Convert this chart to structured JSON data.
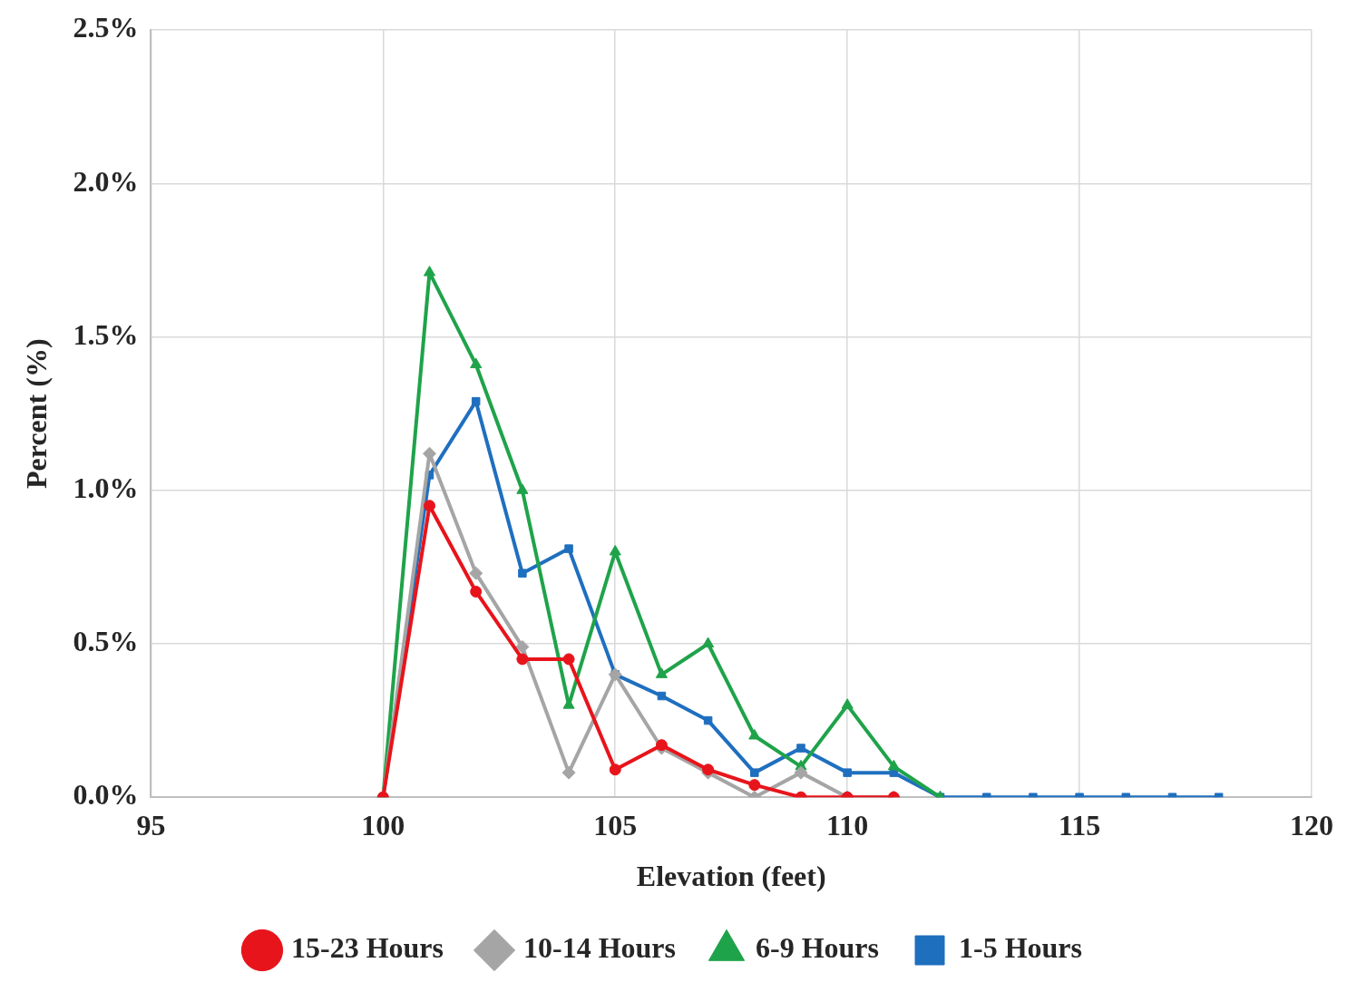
{
  "chart_data": {
    "type": "line",
    "xlabel": "Elevation (feet)",
    "ylabel": "Percent (%)",
    "xlim": [
      95,
      120
    ],
    "xticks": [
      95,
      100,
      105,
      110,
      115,
      120
    ],
    "ylim": [
      0,
      2.5
    ],
    "yticks": [
      {
        "value": 0,
        "label": "0.0%"
      },
      {
        "value": 0.5,
        "label": "0.5%"
      },
      {
        "value": 1,
        "label": "1.0%"
      },
      {
        "value": 1.5,
        "label": "1.5%"
      },
      {
        "value": 2,
        "label": "2.0%"
      },
      {
        "value": 2.5,
        "label": "2.5%"
      }
    ],
    "grid": true,
    "legend": "bottom",
    "line_style": "solid",
    "series": [
      {
        "name": "15-23 Hours",
        "color": "#e8141b",
        "marker": "circle",
        "x": [
          100,
          101,
          102,
          103,
          104,
          105,
          106,
          107,
          108,
          109,
          110,
          111
        ],
        "values": [
          0,
          0.95,
          0.67,
          0.45,
          0.45,
          0.09,
          0.17,
          0.09,
          0.04,
          0,
          0,
          0
        ]
      },
      {
        "name": "10-14 Hours",
        "color": "#a5a5a5",
        "marker": "diamond",
        "x": [
          100,
          101,
          102,
          103,
          104,
          105,
          106,
          107,
          108,
          109,
          110,
          111
        ],
        "values": [
          0,
          1.12,
          0.73,
          0.49,
          0.08,
          0.4,
          0.16,
          0.08,
          0,
          0.08,
          0,
          0
        ]
      },
      {
        "name": "6-9 Hours",
        "color": "#1fa34a",
        "marker": "triangle",
        "x": [
          100,
          101,
          102,
          103,
          104,
          105,
          106,
          107,
          108,
          109,
          110,
          111,
          112
        ],
        "values": [
          0,
          1.71,
          1.41,
          1,
          0.3,
          0.8,
          0.4,
          0.5,
          0.2,
          0.1,
          0.3,
          0.1,
          0
        ]
      },
      {
        "name": "1-5 Hours",
        "color": "#1f6fbf",
        "marker": "square",
        "x": [
          100,
          101,
          102,
          103,
          104,
          105,
          106,
          107,
          108,
          109,
          110,
          111,
          112,
          113,
          114,
          115,
          116,
          117,
          118
        ],
        "values": [
          0,
          1.05,
          1.29,
          0.73,
          0.81,
          0.4,
          0.33,
          0.25,
          0.08,
          0.16,
          0.08,
          0.08,
          0,
          0,
          0,
          0,
          0,
          0,
          0
        ]
      }
    ]
  }
}
